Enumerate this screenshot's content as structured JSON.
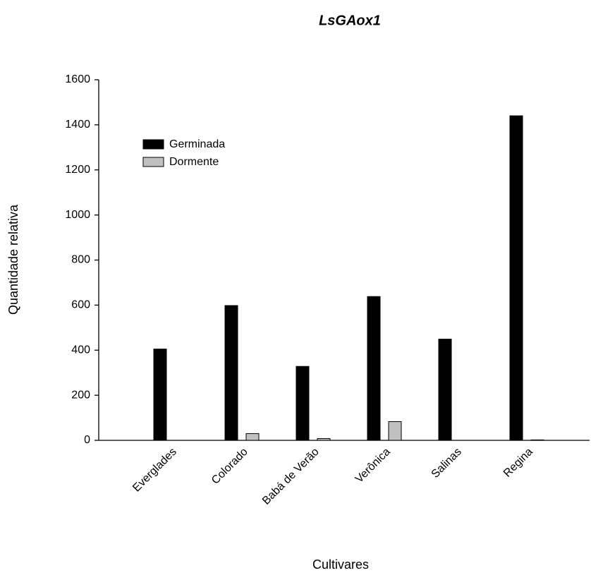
{
  "chart_data": {
    "type": "bar",
    "title": "LsGAox1",
    "x_label": "Cultivares",
    "y_label": "Quantidade relativa",
    "categories": [
      "Everglades",
      "Colorado",
      "Babá de Verão",
      "Verônica",
      "Salinas",
      "Regina"
    ],
    "series": [
      {
        "name": "Germinada",
        "color": "#000000",
        "values": [
          405,
          598,
          328,
          638,
          449,
          1440
        ]
      },
      {
        "name": "Dormente",
        "color": "#c0c0c0",
        "values": [
          0,
          30,
          8,
          83,
          0,
          2
        ]
      }
    ],
    "ylim": [
      0,
      1600
    ],
    "yticks": [
      0,
      200,
      400,
      600,
      800,
      1000,
      1200,
      1400,
      1600
    ],
    "grid": false,
    "legend": "upper left"
  }
}
